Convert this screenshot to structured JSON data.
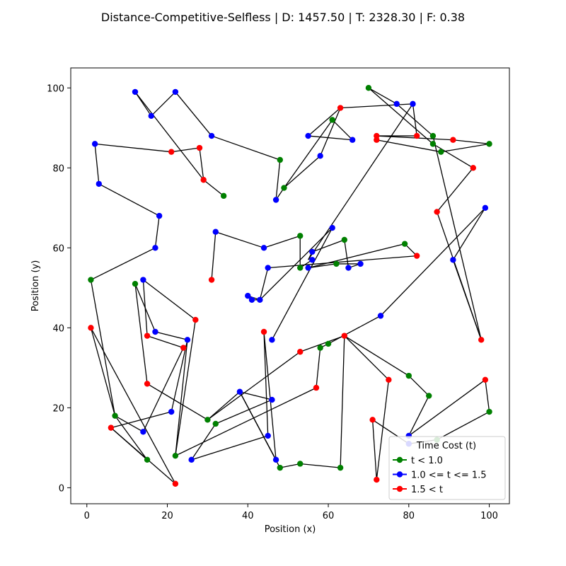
{
  "chart_data": {
    "type": "line",
    "title": "Distance-Competitive-Selfless | D: 1457.50 | T: 2328.30 | F: 0.38",
    "xlabel": "Position (x)",
    "ylabel": "Position (y)",
    "xlim": [
      -4,
      105
    ],
    "ylim": [
      -4,
      105
    ],
    "xticks": [
      0,
      20,
      40,
      60,
      80,
      100
    ],
    "yticks": [
      0,
      20,
      40,
      60,
      80,
      100
    ],
    "grid": false,
    "legend": {
      "title": "Time Cost (t)",
      "placement": "lower-right",
      "entries": [
        {
          "label": "t < 1.0",
          "color": "#008000"
        },
        {
          "label": "1.0 <= t <= 1.5",
          "color": "#0000ff"
        },
        {
          "label": "1.5 < t",
          "color": "#ff0000"
        }
      ]
    },
    "segments": [
      [
        [
          12,
          99
        ],
        [
          16,
          93
        ]
      ],
      [
        [
          16,
          93
        ],
        [
          22,
          99
        ]
      ],
      [
        [
          22,
          99
        ],
        [
          31,
          88
        ]
      ],
      [
        [
          31,
          88
        ],
        [
          48,
          82
        ]
      ],
      [
        [
          48,
          82
        ],
        [
          47,
          72
        ]
      ],
      [
        [
          12,
          99
        ],
        [
          29,
          77
        ]
      ],
      [
        [
          29,
          77
        ],
        [
          34,
          73
        ]
      ],
      [
        [
          29,
          77
        ],
        [
          28,
          85
        ]
      ],
      [
        [
          28,
          85
        ],
        [
          21,
          84
        ]
      ],
      [
        [
          21,
          84
        ],
        [
          2,
          86
        ]
      ],
      [
        [
          2,
          86
        ],
        [
          3,
          76
        ]
      ],
      [
        [
          3,
          76
        ],
        [
          18,
          68
        ]
      ],
      [
        [
          18,
          68
        ],
        [
          17,
          60
        ]
      ],
      [
        [
          17,
          60
        ],
        [
          1,
          52
        ]
      ],
      [
        [
          1,
          52
        ],
        [
          7,
          18
        ]
      ],
      [
        [
          7,
          18
        ],
        [
          14,
          14
        ]
      ],
      [
        [
          14,
          14
        ],
        [
          24,
          35
        ]
      ],
      [
        [
          24,
          35
        ],
        [
          15,
          38
        ]
      ],
      [
        [
          15,
          38
        ],
        [
          14,
          52
        ]
      ],
      [
        [
          14,
          52
        ],
        [
          27,
          42
        ]
      ],
      [
        [
          27,
          42
        ],
        [
          22,
          8
        ]
      ],
      [
        [
          22,
          8
        ],
        [
          25,
          37
        ]
      ],
      [
        [
          25,
          37
        ],
        [
          17,
          39
        ]
      ],
      [
        [
          17,
          39
        ],
        [
          12,
          51
        ]
      ],
      [
        [
          12,
          51
        ],
        [
          15,
          26
        ]
      ],
      [
        [
          15,
          26
        ],
        [
          30,
          17
        ]
      ],
      [
        [
          30,
          17
        ],
        [
          38,
          24
        ]
      ],
      [
        [
          38,
          24
        ],
        [
          47,
          7
        ]
      ],
      [
        [
          47,
          7
        ],
        [
          44,
          39
        ]
      ],
      [
        [
          44,
          39
        ],
        [
          45,
          13
        ]
      ],
      [
        [
          45,
          13
        ],
        [
          26,
          7
        ]
      ],
      [
        [
          26,
          7
        ],
        [
          32,
          16
        ]
      ],
      [
        [
          32,
          16
        ],
        [
          46,
          22
        ]
      ],
      [
        [
          46,
          22
        ],
        [
          38,
          24
        ]
      ],
      [
        [
          30,
          17
        ],
        [
          53,
          34
        ]
      ],
      [
        [
          53,
          34
        ],
        [
          64,
          38
        ]
      ],
      [
        [
          64,
          38
        ],
        [
          75,
          27
        ]
      ],
      [
        [
          75,
          27
        ],
        [
          72,
          2
        ]
      ],
      [
        [
          72,
          2
        ],
        [
          71,
          17
        ]
      ],
      [
        [
          71,
          17
        ],
        [
          80,
          11
        ]
      ],
      [
        [
          80,
          11
        ],
        [
          87,
          12
        ]
      ],
      [
        [
          87,
          12
        ],
        [
          100,
          19
        ]
      ],
      [
        [
          100,
          19
        ],
        [
          99,
          27
        ]
      ],
      [
        [
          99,
          27
        ],
        [
          80,
          13
        ]
      ],
      [
        [
          80,
          13
        ],
        [
          85,
          23
        ]
      ],
      [
        [
          85,
          23
        ],
        [
          80,
          28
        ]
      ],
      [
        [
          80,
          28
        ],
        [
          64,
          38
        ]
      ],
      [
        [
          64,
          38
        ],
        [
          63,
          5
        ]
      ],
      [
        [
          63,
          5
        ],
        [
          53,
          6
        ]
      ],
      [
        [
          53,
          6
        ],
        [
          48,
          5
        ]
      ],
      [
        [
          48,
          5
        ],
        [
          38,
          24
        ]
      ],
      [
        [
          22,
          8
        ],
        [
          57,
          25
        ]
      ],
      [
        [
          57,
          25
        ],
        [
          58,
          35
        ]
      ],
      [
        [
          58,
          35
        ],
        [
          60,
          36
        ]
      ],
      [
        [
          60,
          36
        ],
        [
          73,
          43
        ]
      ],
      [
        [
          73,
          43
        ],
        [
          99,
          70
        ]
      ],
      [
        [
          99,
          70
        ],
        [
          91,
          57
        ]
      ],
      [
        [
          91,
          57
        ],
        [
          98,
          37
        ]
      ],
      [
        [
          98,
          37
        ],
        [
          86,
          88
        ]
      ],
      [
        [
          86,
          88
        ],
        [
          77,
          96
        ]
      ],
      [
        [
          77,
          96
        ],
        [
          70,
          100
        ]
      ],
      [
        [
          70,
          100
        ],
        [
          86,
          86
        ]
      ],
      [
        [
          86,
          86
        ],
        [
          96,
          80
        ]
      ],
      [
        [
          96,
          80
        ],
        [
          87,
          69
        ]
      ],
      [
        [
          87,
          69
        ],
        [
          98,
          37
        ]
      ],
      [
        [
          72,
          87
        ],
        [
          88,
          84
        ]
      ],
      [
        [
          88,
          84
        ],
        [
          100,
          86
        ]
      ],
      [
        [
          100,
          86
        ],
        [
          91,
          87
        ]
      ],
      [
        [
          91,
          87
        ],
        [
          72,
          88
        ]
      ],
      [
        [
          72,
          88
        ],
        [
          82,
          88
        ]
      ],
      [
        [
          82,
          88
        ],
        [
          81,
          96
        ]
      ],
      [
        [
          81,
          96
        ],
        [
          55,
          57
        ]
      ],
      [
        [
          55,
          57
        ],
        [
          56,
          59
        ]
      ],
      [
        [
          56,
          59
        ],
        [
          64,
          62
        ]
      ],
      [
        [
          64,
          62
        ],
        [
          65,
          55
        ]
      ],
      [
        [
          65,
          55
        ],
        [
          68,
          56
        ]
      ],
      [
        [
          68,
          56
        ],
        [
          62,
          56
        ]
      ],
      [
        [
          62,
          56
        ],
        [
          55,
          55
        ]
      ],
      [
        [
          55,
          55
        ],
        [
          79,
          61
        ]
      ],
      [
        [
          79,
          61
        ],
        [
          82,
          58
        ]
      ],
      [
        [
          82,
          58
        ],
        [
          45,
          55
        ]
      ],
      [
        [
          45,
          55
        ],
        [
          43,
          47
        ]
      ],
      [
        [
          43,
          47
        ],
        [
          40,
          48
        ]
      ],
      [
        [
          40,
          48
        ],
        [
          41,
          47
        ]
      ],
      [
        [
          41,
          47
        ],
        [
          43,
          47
        ]
      ],
      [
        [
          43,
          47
        ],
        [
          61,
          65
        ]
      ],
      [
        [
          61,
          65
        ],
        [
          46,
          37
        ]
      ],
      [
        [
          47,
          72
        ],
        [
          49,
          75
        ]
      ],
      [
        [
          49,
          75
        ],
        [
          58,
          83
        ]
      ],
      [
        [
          58,
          83
        ],
        [
          63,
          95
        ]
      ],
      [
        [
          63,
          95
        ],
        [
          55,
          88
        ]
      ],
      [
        [
          55,
          88
        ],
        [
          66,
          87
        ]
      ],
      [
        [
          66,
          87
        ],
        [
          61,
          92
        ]
      ],
      [
        [
          61,
          92
        ],
        [
          49,
          75
        ]
      ],
      [
        [
          63,
          95
        ],
        [
          81,
          96
        ]
      ],
      [
        [
          1,
          40
        ],
        [
          7,
          18
        ]
      ],
      [
        [
          7,
          18
        ],
        [
          15,
          7
        ]
      ],
      [
        [
          15,
          7
        ],
        [
          6,
          15
        ]
      ],
      [
        [
          6,
          15
        ],
        [
          22,
          1
        ]
      ],
      [
        [
          22,
          1
        ],
        [
          1,
          40
        ]
      ],
      [
        [
          6,
          15
        ],
        [
          21,
          19
        ]
      ],
      [
        [
          21,
          19
        ],
        [
          25,
          37
        ]
      ],
      [
        [
          32,
          64
        ],
        [
          31,
          52
        ]
      ],
      [
        [
          32,
          64
        ],
        [
          44,
          60
        ]
      ],
      [
        [
          44,
          60
        ],
        [
          53,
          63
        ]
      ],
      [
        [
          53,
          63
        ],
        [
          53,
          55
        ]
      ],
      [
        [
          53,
          55
        ],
        [
          56,
          57
        ]
      ]
    ],
    "points": [
      {
        "x": 12,
        "y": 99,
        "c": 1
      },
      {
        "x": 22,
        "y": 99,
        "c": 1
      },
      {
        "x": 16,
        "y": 93,
        "c": 1
      },
      {
        "x": 31,
        "y": 88,
        "c": 1
      },
      {
        "x": 2,
        "y": 86,
        "c": 1
      },
      {
        "x": 3,
        "y": 76,
        "c": 1
      },
      {
        "x": 18,
        "y": 68,
        "c": 1
      },
      {
        "x": 17,
        "y": 60,
        "c": 1
      },
      {
        "x": 32,
        "y": 64,
        "c": 1
      },
      {
        "x": 44,
        "y": 60,
        "c": 1
      },
      {
        "x": 47,
        "y": 72,
        "c": 1
      },
      {
        "x": 58,
        "y": 83,
        "c": 1
      },
      {
        "x": 55,
        "y": 88,
        "c": 1
      },
      {
        "x": 66,
        "y": 87,
        "c": 1
      },
      {
        "x": 77,
        "y": 96,
        "c": 1
      },
      {
        "x": 81,
        "y": 96,
        "c": 1
      },
      {
        "x": 99,
        "y": 70,
        "c": 1
      },
      {
        "x": 91,
        "y": 57,
        "c": 1
      },
      {
        "x": 61,
        "y": 65,
        "c": 1
      },
      {
        "x": 56,
        "y": 59,
        "c": 1
      },
      {
        "x": 56,
        "y": 57,
        "c": 1
      },
      {
        "x": 55,
        "y": 55,
        "c": 1
      },
      {
        "x": 65,
        "y": 55,
        "c": 1
      },
      {
        "x": 68,
        "y": 56,
        "c": 1
      },
      {
        "x": 45,
        "y": 55,
        "c": 1
      },
      {
        "x": 40,
        "y": 48,
        "c": 1
      },
      {
        "x": 41,
        "y": 47,
        "c": 1
      },
      {
        "x": 43,
        "y": 47,
        "c": 1
      },
      {
        "x": 46,
        "y": 37,
        "c": 1
      },
      {
        "x": 73,
        "y": 43,
        "c": 1
      },
      {
        "x": 14,
        "y": 52,
        "c": 1
      },
      {
        "x": 17,
        "y": 39,
        "c": 1
      },
      {
        "x": 25,
        "y": 37,
        "c": 1
      },
      {
        "x": 21,
        "y": 19,
        "c": 1
      },
      {
        "x": 14,
        "y": 14,
        "c": 1
      },
      {
        "x": 26,
        "y": 7,
        "c": 1
      },
      {
        "x": 38,
        "y": 24,
        "c": 1
      },
      {
        "x": 46,
        "y": 22,
        "c": 1
      },
      {
        "x": 45,
        "y": 13,
        "c": 1
      },
      {
        "x": 47,
        "y": 7,
        "c": 1
      },
      {
        "x": 80,
        "y": 13,
        "c": 1
      },
      {
        "x": 80,
        "y": 11,
        "c": 1
      },
      {
        "x": 70,
        "y": 100,
        "c": 0
      },
      {
        "x": 61,
        "y": 92,
        "c": 0
      },
      {
        "x": 86,
        "y": 88,
        "c": 0
      },
      {
        "x": 86,
        "y": 86,
        "c": 0
      },
      {
        "x": 88,
        "y": 84,
        "c": 0
      },
      {
        "x": 100,
        "y": 86,
        "c": 0
      },
      {
        "x": 48,
        "y": 82,
        "c": 0
      },
      {
        "x": 49,
        "y": 75,
        "c": 0
      },
      {
        "x": 34,
        "y": 73,
        "c": 0
      },
      {
        "x": 53,
        "y": 63,
        "c": 0
      },
      {
        "x": 53,
        "y": 55,
        "c": 0
      },
      {
        "x": 64,
        "y": 62,
        "c": 0
      },
      {
        "x": 62,
        "y": 56,
        "c": 0
      },
      {
        "x": 79,
        "y": 61,
        "c": 0
      },
      {
        "x": 1,
        "y": 52,
        "c": 0
      },
      {
        "x": 12,
        "y": 51,
        "c": 0
      },
      {
        "x": 7,
        "y": 18,
        "c": 0
      },
      {
        "x": 15,
        "y": 7,
        "c": 0
      },
      {
        "x": 22,
        "y": 8,
        "c": 0
      },
      {
        "x": 30,
        "y": 17,
        "c": 0
      },
      {
        "x": 32,
        "y": 16,
        "c": 0
      },
      {
        "x": 48,
        "y": 5,
        "c": 0
      },
      {
        "x": 53,
        "y": 6,
        "c": 0
      },
      {
        "x": 63,
        "y": 5,
        "c": 0
      },
      {
        "x": 58,
        "y": 35,
        "c": 0
      },
      {
        "x": 60,
        "y": 36,
        "c": 0
      },
      {
        "x": 80,
        "y": 28,
        "c": 0
      },
      {
        "x": 85,
        "y": 23,
        "c": 0
      },
      {
        "x": 100,
        "y": 19,
        "c": 0
      },
      {
        "x": 87,
        "y": 12,
        "c": 0
      },
      {
        "x": 63,
        "y": 95,
        "c": 2
      },
      {
        "x": 72,
        "y": 88,
        "c": 2
      },
      {
        "x": 72,
        "y": 87,
        "c": 2
      },
      {
        "x": 82,
        "y": 88,
        "c": 2
      },
      {
        "x": 91,
        "y": 87,
        "c": 2
      },
      {
        "x": 96,
        "y": 80,
        "c": 2
      },
      {
        "x": 87,
        "y": 69,
        "c": 2
      },
      {
        "x": 82,
        "y": 58,
        "c": 2
      },
      {
        "x": 98,
        "y": 37,
        "c": 2
      },
      {
        "x": 21,
        "y": 84,
        "c": 2
      },
      {
        "x": 28,
        "y": 85,
        "c": 2
      },
      {
        "x": 29,
        "y": 77,
        "c": 2
      },
      {
        "x": 31,
        "y": 52,
        "c": 2
      },
      {
        "x": 27,
        "y": 42,
        "c": 2
      },
      {
        "x": 15,
        "y": 38,
        "c": 2
      },
      {
        "x": 24,
        "y": 35,
        "c": 2
      },
      {
        "x": 1,
        "y": 40,
        "c": 2
      },
      {
        "x": 15,
        "y": 26,
        "c": 2
      },
      {
        "x": 6,
        "y": 15,
        "c": 2
      },
      {
        "x": 22,
        "y": 1,
        "c": 2
      },
      {
        "x": 44,
        "y": 39,
        "c": 2
      },
      {
        "x": 53,
        "y": 34,
        "c": 2
      },
      {
        "x": 64,
        "y": 38,
        "c": 2
      },
      {
        "x": 57,
        "y": 25,
        "c": 2
      },
      {
        "x": 75,
        "y": 27,
        "c": 2
      },
      {
        "x": 71,
        "y": 17,
        "c": 2
      },
      {
        "x": 72,
        "y": 2,
        "c": 2
      },
      {
        "x": 99,
        "y": 27,
        "c": 2
      }
    ]
  }
}
